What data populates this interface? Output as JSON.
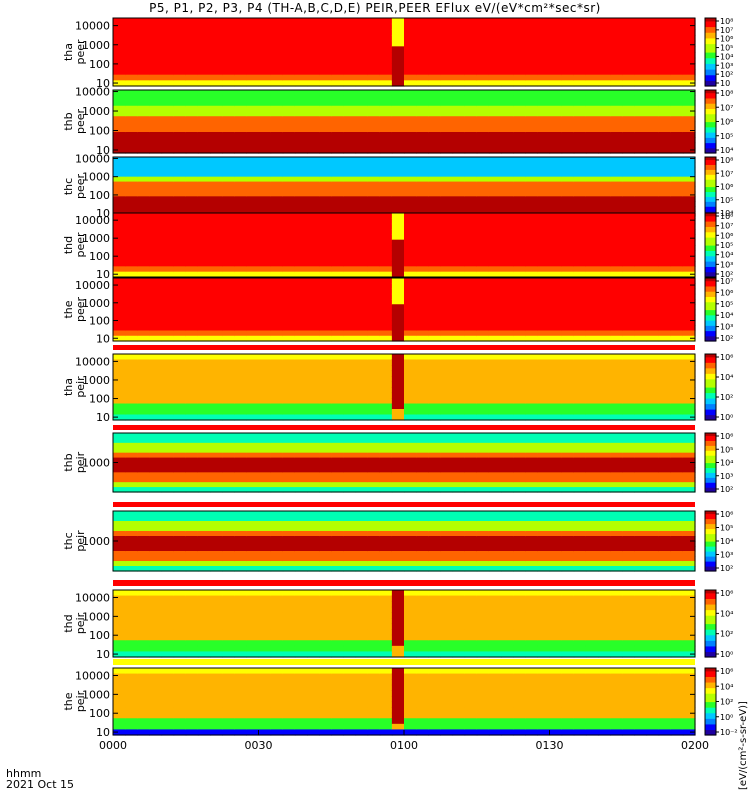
{
  "figure": {
    "title": "P5, P1, P2, P3, P4 (TH-A,B,C,D,E) PEIR,PEER EFlux eV/(eV*cm²*sec*sr)",
    "x_axis_label": "hhmm",
    "date_label": "2021 Oct 15",
    "colorbar_unit_label": "[eV/(cm²-s-sr-eV)]"
  },
  "colors": {
    "background": "#ffffff",
    "colormap": [
      "#1e00a0",
      "#0000ff",
      "#0080ff",
      "#00c8ff",
      "#00ffb4",
      "#28ff28",
      "#b4ff00",
      "#ffff00",
      "#ffb400",
      "#ff6400",
      "#ff0000",
      "#b40000"
    ]
  },
  "chart_data": {
    "type": "heatmap",
    "description_fields": "spectrogram panels: energy (eV, log scale) vs time (UT), color = energy flux",
    "x": {
      "range": [
        "0000",
        "0200"
      ],
      "ticks": [
        "0000",
        "0030",
        "0100",
        "0130",
        "0200"
      ],
      "tick_values_min": [
        0,
        30,
        60,
        90,
        120
      ]
    },
    "panels": [
      {
        "id": "tha-peer",
        "label": [
          "tha",
          "peer"
        ],
        "y_scale": "log",
        "ylim": [
          7,
          25000
        ],
        "y_ticks": [
          "10",
          "100",
          "1000",
          "10000"
        ],
        "colorbar_ticks": [
          "10",
          "10²",
          "10³",
          "10⁴",
          "10⁵",
          "10⁶",
          "10⁷",
          "10⁸"
        ],
        "colorbar_range_exp": [
          1,
          8
        ]
      },
      {
        "id": "thb-peer",
        "label": [
          "thb",
          "peer"
        ],
        "y_scale": "log",
        "ylim": [
          7,
          12000
        ],
        "y_ticks": [
          "10",
          "100",
          "1000",
          "10000"
        ],
        "colorbar_ticks": [
          "10⁴",
          "10⁵",
          "10⁶",
          "10⁷",
          "10⁸"
        ],
        "colorbar_range_exp": [
          4,
          8
        ]
      },
      {
        "id": "thc-peer",
        "label": [
          "thc",
          "peer"
        ],
        "y_scale": "log",
        "ylim": [
          7,
          12000
        ],
        "y_ticks": [
          "10",
          "100",
          "1000",
          "10000"
        ],
        "colorbar_ticks": [
          "10⁴",
          "10⁵",
          "10⁶",
          "10⁷",
          "10⁸"
        ],
        "colorbar_range_exp": [
          4,
          8
        ]
      },
      {
        "id": "thd-peer",
        "label": [
          "thd",
          "peer"
        ],
        "y_scale": "log",
        "ylim": [
          7,
          25000
        ],
        "y_ticks": [
          "10",
          "100",
          "1000",
          "10000"
        ],
        "colorbar_ticks": [
          "10²",
          "10³",
          "10⁴",
          "10⁵",
          "10⁶",
          "10⁷",
          "10⁸"
        ],
        "colorbar_range_exp": [
          2,
          8
        ]
      },
      {
        "id": "the-peer",
        "label": [
          "the",
          "peer"
        ],
        "y_scale": "log",
        "ylim": [
          7,
          25000
        ],
        "y_ticks": [
          "10",
          "100",
          "1000",
          "10000"
        ],
        "colorbar_ticks": [
          "10²",
          "10³",
          "10⁴",
          "10⁵",
          "10⁶",
          "10⁷"
        ],
        "colorbar_range_exp": [
          2,
          7
        ]
      },
      {
        "id": "tha-peir",
        "label": [
          "tha",
          "peir"
        ],
        "y_scale": "log",
        "ylim": [
          7,
          25000
        ],
        "y_ticks": [
          "10",
          "100",
          "1000",
          "10000"
        ],
        "colorbar_ticks": [
          "10⁰",
          "10²",
          "10⁴",
          "10⁶"
        ],
        "colorbar_range_exp": [
          0,
          7
        ]
      },
      {
        "id": "thb-peir",
        "label": [
          "thb",
          "peir"
        ],
        "y_scale": "log",
        "ylim": [
          200,
          5000
        ],
        "y_ticks": [
          "1000"
        ],
        "colorbar_ticks": [
          "10²",
          "10³",
          "10⁴",
          "10⁵",
          "10⁶"
        ],
        "colorbar_range_exp": [
          2,
          6
        ]
      },
      {
        "id": "thc-peir",
        "label": [
          "thc",
          "peir"
        ],
        "y_scale": "log",
        "ylim": [
          200,
          5000
        ],
        "y_ticks": [
          "1000"
        ],
        "colorbar_ticks": [
          "10²",
          "10³",
          "10⁴",
          "10⁵",
          "10⁶"
        ],
        "colorbar_range_exp": [
          2,
          6
        ]
      },
      {
        "id": "thd-peir",
        "label": [
          "thd",
          "peir"
        ],
        "y_scale": "log",
        "ylim": [
          7,
          25000
        ],
        "y_ticks": [
          "10",
          "100",
          "1000",
          "10000"
        ],
        "colorbar_ticks": [
          "10⁰",
          "10²",
          "10⁴",
          "10⁶"
        ],
        "colorbar_range_exp": [
          0,
          6
        ]
      },
      {
        "id": "the-peir",
        "label": [
          "the",
          "peir"
        ],
        "y_scale": "log",
        "ylim": [
          7,
          25000
        ],
        "y_ticks": [
          "10",
          "100",
          "1000",
          "10000"
        ],
        "colorbar_ticks": [
          "10⁻²",
          "10⁰",
          "10²",
          "10⁴",
          "10⁶"
        ],
        "colorbar_range_exp": [
          -3,
          7
        ]
      }
    ]
  }
}
